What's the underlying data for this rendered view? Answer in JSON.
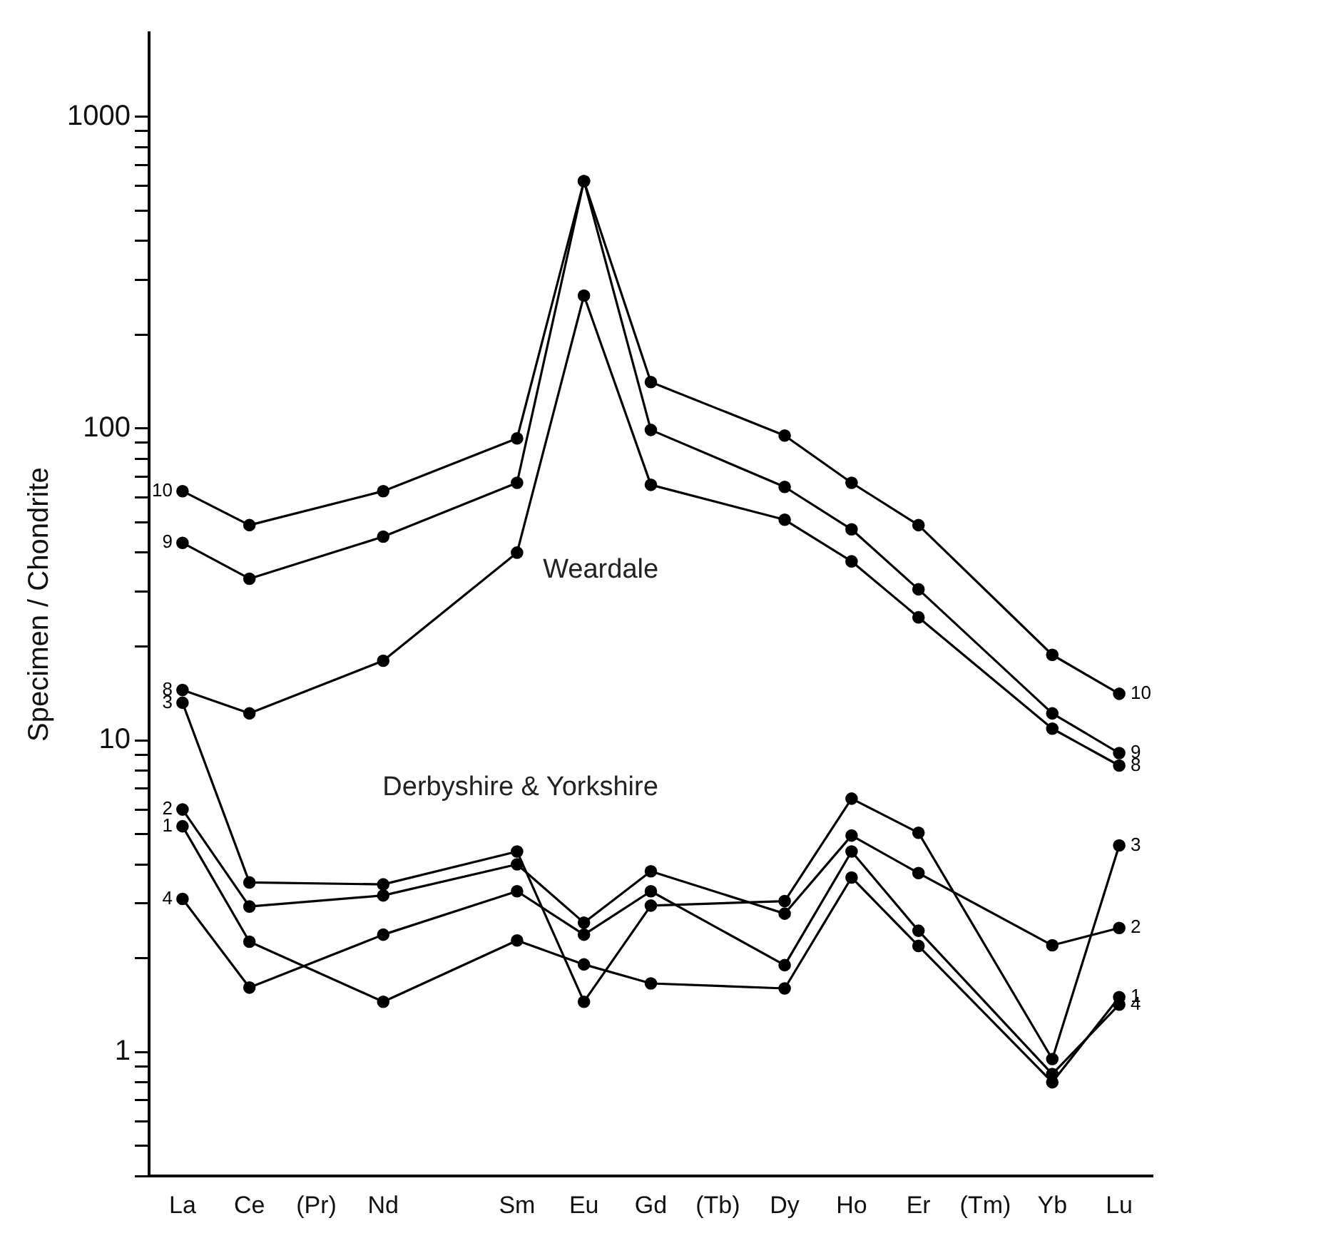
{
  "chart_data": {
    "type": "line",
    "ylabel": "Specimen / Chondrite",
    "categories": [
      "La",
      "Ce",
      "(Pr)",
      "Nd",
      null,
      "Sm",
      "Eu",
      "Gd",
      "(Tb)",
      "Dy",
      "Ho",
      "Er",
      "(Tm)",
      "Yb",
      "Lu"
    ],
    "series": [
      {
        "name": "10",
        "color": "#000000",
        "values": [
          63,
          49,
          null,
          63,
          null,
          93,
          622,
          141,
          null,
          95,
          67,
          49,
          null,
          18.8,
          14.1
        ]
      },
      {
        "name": "9",
        "color": "#000000",
        "values": [
          43,
          33,
          null,
          45,
          null,
          67,
          622,
          99,
          null,
          65,
          47.5,
          30.5,
          null,
          12.2,
          9.1
        ]
      },
      {
        "name": "8",
        "color": "#000000",
        "values": [
          14.5,
          12.2,
          null,
          18,
          null,
          40,
          267,
          66,
          null,
          51,
          37.5,
          24.8,
          null,
          10.9,
          8.3
        ]
      },
      {
        "name": "3",
        "color": "#000000",
        "values": [
          13.2,
          3.5,
          null,
          3.45,
          null,
          4.4,
          1.45,
          2.95,
          null,
          3.05,
          6.5,
          5.05,
          null,
          0.95,
          4.6
        ]
      },
      {
        "name": "2",
        "color": "#000000",
        "values": [
          6,
          2.93,
          null,
          3.18,
          null,
          4,
          2.6,
          3.8,
          null,
          2.78,
          4.95,
          3.75,
          null,
          2.2,
          2.5
        ]
      },
      {
        "name": "1",
        "color": "#000000",
        "values": [
          5.3,
          2.26,
          null,
          1.45,
          null,
          2.28,
          1.91,
          1.66,
          null,
          1.6,
          3.63,
          2.19,
          null,
          0.8,
          1.5
        ]
      },
      {
        "name": "4",
        "color": "#000000",
        "values": [
          3.1,
          1.61,
          null,
          2.38,
          null,
          3.28,
          2.38,
          3.28,
          null,
          1.9,
          4.4,
          2.45,
          null,
          0.85,
          1.42
        ]
      }
    ],
    "log": "y",
    "ylim": [
      0.4,
      1860
    ],
    "yticks": [
      {
        "value": 0.4,
        "label": null
      },
      {
        "value": 0.5,
        "label": null
      },
      {
        "value": 0.6,
        "label": null
      },
      {
        "value": 0.7,
        "label": null
      },
      {
        "value": 0.8,
        "label": null
      },
      {
        "value": 0.9,
        "label": null
      },
      1,
      {
        "value": 2,
        "label": null
      },
      {
        "value": 3,
        "label": null
      },
      {
        "value": 4,
        "label": null
      },
      {
        "value": 5,
        "label": null
      },
      {
        "value": 6,
        "label": null
      },
      {
        "value": 7,
        "label": null
      },
      {
        "value": 8,
        "label": null
      },
      {
        "value": 9,
        "label": null
      },
      10,
      {
        "value": 20,
        "label": null
      },
      {
        "value": 30,
        "label": null
      },
      {
        "value": 40,
        "label": null
      },
      {
        "value": 50,
        "label": null
      },
      {
        "value": 60,
        "label": null
      },
      {
        "value": 70,
        "label": null
      },
      {
        "value": 80,
        "label": null
      },
      {
        "value": 90,
        "label": null
      },
      100,
      {
        "value": 200,
        "label": null
      },
      {
        "value": 300,
        "label": null
      },
      {
        "value": 400,
        "label": null
      },
      {
        "value": 500,
        "label": null
      },
      {
        "value": 600,
        "label": null
      },
      {
        "value": 700,
        "label": null
      },
      {
        "value": 800,
        "label": null
      },
      {
        "value": 900,
        "label": null
      },
      1000
    ],
    "annotations": [
      "Weardale",
      "Derbyshire & Yorkshire"
    ],
    "grid": false,
    "legend": false,
    "marker": "circle",
    "line_style": "solid"
  }
}
